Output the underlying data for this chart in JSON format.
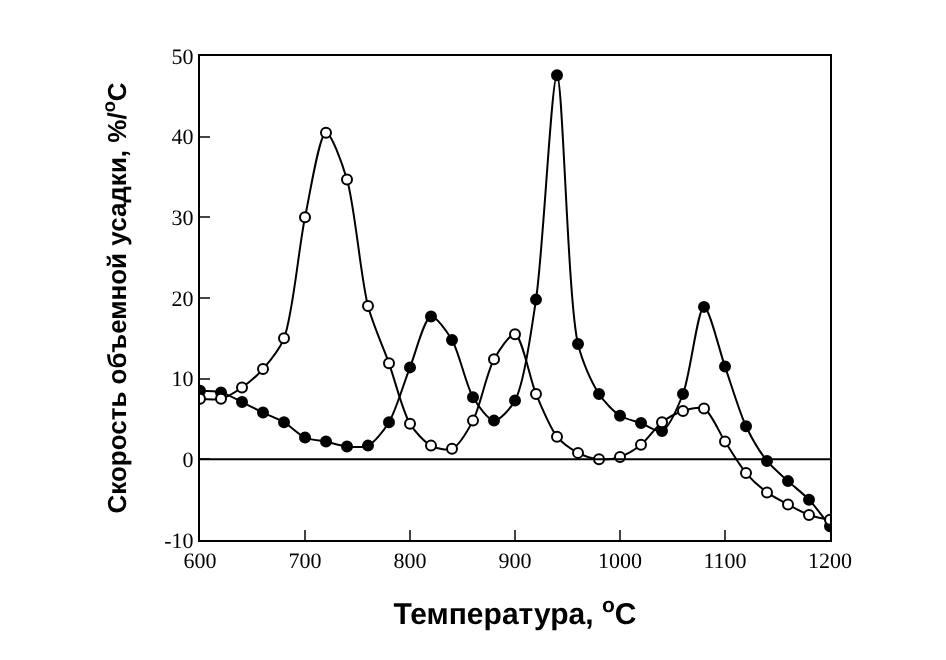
{
  "chart_data": {
    "type": "line",
    "xlabel": "Температура, $^{o}$C",
    "ylabel": "Скорость объемной усадки, %/$^{o}$C",
    "x": [
      600,
      620,
      640,
      660,
      680,
      700,
      720,
      740,
      760,
      780,
      800,
      820,
      840,
      860,
      880,
      900,
      920,
      940,
      960,
      980,
      1000,
      1020,
      1040,
      1060,
      1080,
      1100,
      1120,
      1140,
      1160,
      1180,
      1200
    ],
    "series": [
      {
        "color": "#ffffff",
        "values": [
          7.5,
          7.5,
          8.9,
          11.2,
          15,
          30,
          40.5,
          34.7,
          19,
          11.9,
          4.4,
          1.7,
          1.3,
          4.8,
          12.4,
          15.5,
          8.1,
          2.8,
          0.8,
          0,
          0.3,
          1.8,
          4.6,
          6,
          6.3,
          2.2,
          -1.7,
          -4.1,
          -5.6,
          -6.9,
          -7.5
        ]
      },
      {
        "color": "#000000",
        "values": [
          8.5,
          8.3,
          7.1,
          5.8,
          4.6,
          2.7,
          2.2,
          1.6,
          1.7,
          4.6,
          11.4,
          17.7,
          14.8,
          7.7,
          4.8,
          7.3,
          19.8,
          47.6,
          14.3,
          8.1,
          5.4,
          4.5,
          3.5,
          8.1,
          18.9,
          11.5,
          4.1,
          -0.2,
          -2.7,
          -5,
          -8.3
        ]
      }
    ],
    "xlim": [
      600,
      1200
    ],
    "xticks": [
      600,
      700,
      800,
      900,
      1000,
      1100,
      1200
    ],
    "ylim": [
      -10,
      50
    ],
    "yticks": [
      -10,
      0,
      10,
      20,
      30,
      40,
      50
    ],
    "ref_lines": [
      {
        "axis": "y",
        "value": 0,
        "color": "#000000"
      }
    ],
    "marker": "circle",
    "legend": false
  }
}
